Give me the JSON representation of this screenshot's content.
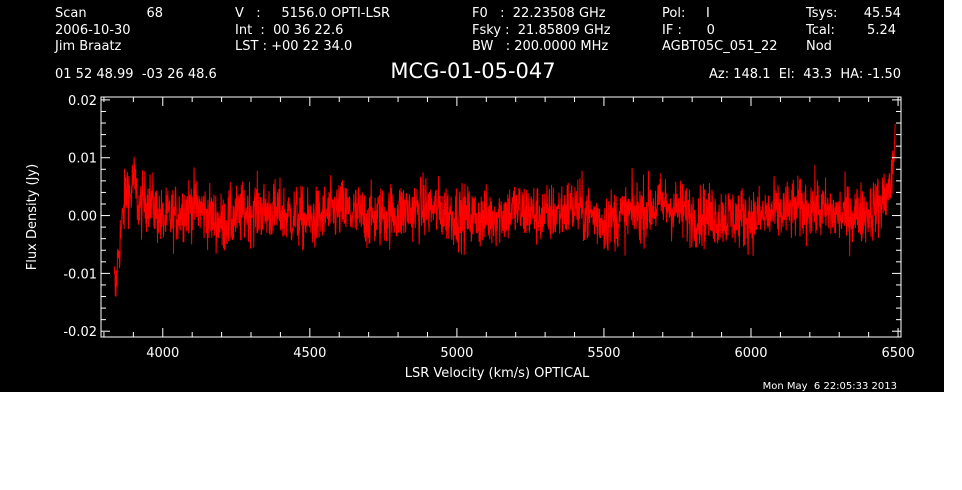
{
  "header": {
    "scan_label": "Scan",
    "scan_value": "68",
    "date": "2006-10-30",
    "observer": "Jim Braatz",
    "v_line": "V   :     5156.0 OPTI-LSR",
    "int_line": "Int  :  00 36 22.6",
    "lst_line": "LST : +00 22 34.0",
    "f0_line": "F0   :  22.23508 GHz",
    "fsky_line": "Fsky :  21.85809 GHz",
    "bw_line": "BW   : 200.0000 MHz",
    "pol_line": "Pol:     I",
    "if_line": "IF :      0",
    "project": "AGBT05C_051_22",
    "tsys_label": "Tsys:",
    "tsys_value": "45.54",
    "tcal_label": "Tcal:",
    "tcal_value": "5.24",
    "proc": "Nod",
    "coords": "01 52 48.99  -03 26 48.6",
    "source": "MCG-01-05-047",
    "az_el_ha": "Az: 148.1  El:  43.3  HA: -1.50"
  },
  "timestamp": "Mon May  6 22:05:33 2013",
  "chart_data": {
    "type": "line",
    "xlabel": "LSR Velocity (km/s) OPTICAL",
    "ylabel": "Flux Density (Jy)",
    "xlim": [
      3790,
      6510
    ],
    "ylim": [
      -0.021,
      0.0205
    ],
    "x_ticks": [
      4000,
      4500,
      5000,
      5500,
      6000,
      6500
    ],
    "y_ticks": [
      -0.02,
      -0.01,
      0.0,
      0.01,
      0.02
    ],
    "y_tick_labels": [
      "-0.02",
      "-0.01",
      "0.00",
      "0.01",
      "0.02"
    ],
    "line_color": "#ff0000",
    "axis_color": "#ffffff",
    "background": "#000000",
    "series": [
      {
        "points": [
          [
            3835,
            -0.0115
          ],
          [
            3840,
            -0.0135
          ],
          [
            3845,
            -0.009
          ],
          [
            3850,
            -0.006
          ],
          [
            3855,
            -0.004
          ],
          [
            3860,
            -0.0025
          ],
          [
            3870,
            0.002
          ],
          [
            3880,
            0.0055
          ],
          [
            3890,
            0.003
          ],
          [
            3900,
            0.0065
          ],
          [
            3920,
            0.001
          ],
          [
            3950,
            0.003
          ],
          [
            4000,
            -0.001
          ],
          [
            4100,
            0.002
          ],
          [
            4200,
            -0.0015
          ],
          [
            4300,
            0.001
          ],
          [
            4400,
            0.0005
          ],
          [
            4500,
            -0.001
          ],
          [
            4600,
            0.001
          ],
          [
            4700,
            -0.0005
          ],
          [
            4800,
            0.0005
          ],
          [
            4900,
            0.0015
          ],
          [
            5000,
            0.0
          ],
          [
            5100,
            -0.0005
          ],
          [
            5200,
            0.001
          ],
          [
            5300,
            0.0
          ],
          [
            5400,
            0.0015
          ],
          [
            5500,
            -0.001
          ],
          [
            5600,
            0.0005
          ],
          [
            5700,
            0.002
          ],
          [
            5800,
            0.0
          ],
          [
            5900,
            0.0
          ],
          [
            6000,
            -0.0005
          ],
          [
            6100,
            0.0005
          ],
          [
            6200,
            0.0015
          ],
          [
            6300,
            0.0
          ],
          [
            6400,
            0.0005
          ],
          [
            6450,
            0.0025
          ],
          [
            6480,
            0.006
          ],
          [
            6490,
            0.015
          ]
        ]
      }
    ]
  }
}
